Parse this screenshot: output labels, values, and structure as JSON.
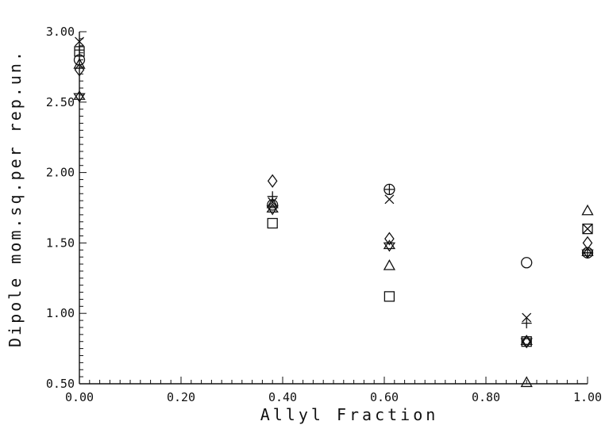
{
  "chart_data": {
    "type": "scatter",
    "xlabel": "Allyl Fraction",
    "ylabel": "Dipole mom.sq.per rep.un.",
    "xlim": [
      0.0,
      1.0
    ],
    "ylim": [
      0.5,
      3.0
    ],
    "grid": false,
    "x_ticks": [
      "0.00",
      "0.20",
      "0.40",
      "0.60",
      "0.80",
      "1.00"
    ],
    "y_ticks": [
      "0.50",
      "1.00",
      "1.50",
      "2.00",
      "2.50",
      "3.00"
    ],
    "series": [
      {
        "marker": "circle",
        "points": [
          [
            0.0,
            2.8
          ],
          [
            0.38,
            1.77
          ],
          [
            0.61,
            1.88
          ],
          [
            0.88,
            1.36
          ],
          [
            1.0,
            1.43
          ]
        ]
      },
      {
        "marker": "square",
        "points": [
          [
            0.0,
            2.86
          ],
          [
            0.38,
            1.64
          ],
          [
            0.61,
            1.12
          ],
          [
            0.88,
            0.8
          ],
          [
            1.0,
            1.6
          ]
        ]
      },
      {
        "marker": "triangle",
        "points": [
          [
            0.0,
            2.77
          ],
          [
            0.38,
            1.78
          ],
          [
            0.61,
            1.34
          ],
          [
            0.88,
            0.51
          ],
          [
            1.0,
            1.73
          ]
        ]
      },
      {
        "marker": "diamond",
        "points": [
          [
            0.0,
            2.73
          ],
          [
            0.38,
            1.94
          ],
          [
            0.61,
            1.53
          ],
          [
            0.88,
            0.8
          ],
          [
            1.0,
            1.5
          ]
        ]
      },
      {
        "marker": "plus",
        "points": [
          [
            0.0,
            2.87
          ],
          [
            0.38,
            1.83
          ],
          [
            0.61,
            1.88
          ],
          [
            0.88,
            0.93
          ],
          [
            1.0,
            1.43
          ]
        ]
      },
      {
        "marker": "x",
        "points": [
          [
            0.0,
            2.93
          ],
          [
            0.38,
            1.79
          ],
          [
            0.61,
            1.81
          ],
          [
            0.88,
            0.97
          ],
          [
            1.0,
            1.6
          ]
        ]
      },
      {
        "marker": "star",
        "points": [
          [
            0.0,
            2.54
          ],
          [
            0.38,
            1.74
          ],
          [
            0.61,
            1.48
          ],
          [
            0.88,
            0.8
          ],
          [
            1.0,
            1.43
          ]
        ]
      }
    ]
  }
}
